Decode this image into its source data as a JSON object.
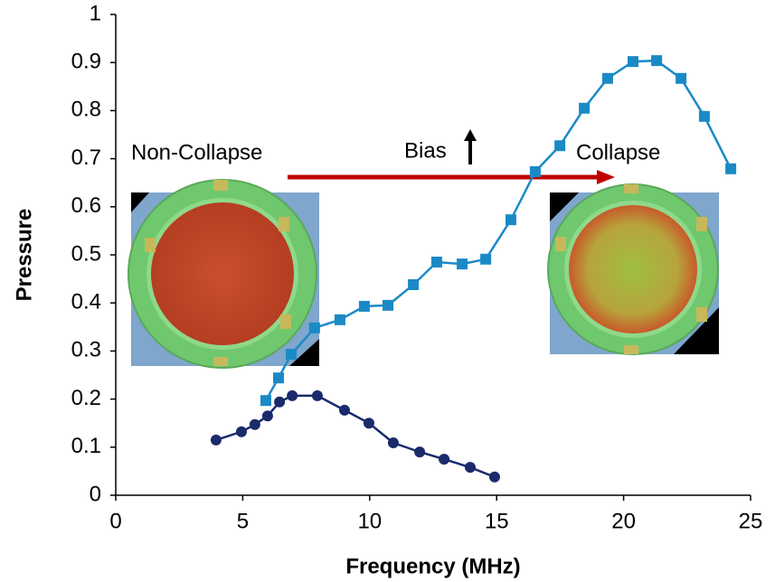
{
  "chart_data": {
    "type": "line",
    "x_label": "Frequency (MHz)",
    "y_label": "Pressure",
    "xlim": [
      0,
      25
    ],
    "xticks": [
      0,
      5,
      10,
      15,
      20,
      25
    ],
    "ylim": [
      0,
      1
    ],
    "yticks": [
      0,
      0.1,
      0.2,
      0.3,
      0.4,
      0.5,
      0.6,
      0.7,
      0.8,
      0.9,
      1
    ],
    "grid": false,
    "series": [
      {
        "color": "#1a8ac6",
        "marker": "square",
        "x": [
          5.91,
          6.41,
          6.91,
          7.83,
          8.83,
          9.79,
          10.72,
          11.72,
          12.64,
          13.64,
          14.57,
          15.56,
          16.52,
          17.49,
          18.45,
          19.37,
          20.37,
          21.3,
          22.26,
          23.18,
          24.22
        ],
        "values": [
          0.197,
          0.244,
          0.293,
          0.348,
          0.365,
          0.393,
          0.395,
          0.438,
          0.485,
          0.481,
          0.491,
          0.573,
          0.673,
          0.727,
          0.805,
          0.867,
          0.902,
          0.904,
          0.867,
          0.788,
          0.679
        ]
      },
      {
        "color": "#1b2a6b",
        "marker": "circle",
        "x": [
          3.95,
          4.95,
          5.48,
          5.98,
          6.45,
          6.95,
          7.94,
          9.01,
          9.97,
          10.93,
          11.97,
          12.93,
          13.96,
          14.92
        ],
        "values": [
          0.115,
          0.132,
          0.147,
          0.165,
          0.194,
          0.207,
          0.207,
          0.177,
          0.15,
          0.109,
          0.09,
          0.075,
          0.058,
          0.038
        ]
      }
    ],
    "annotations": [
      "Non-Collapse",
      "Bias",
      "Collapse"
    ]
  }
}
